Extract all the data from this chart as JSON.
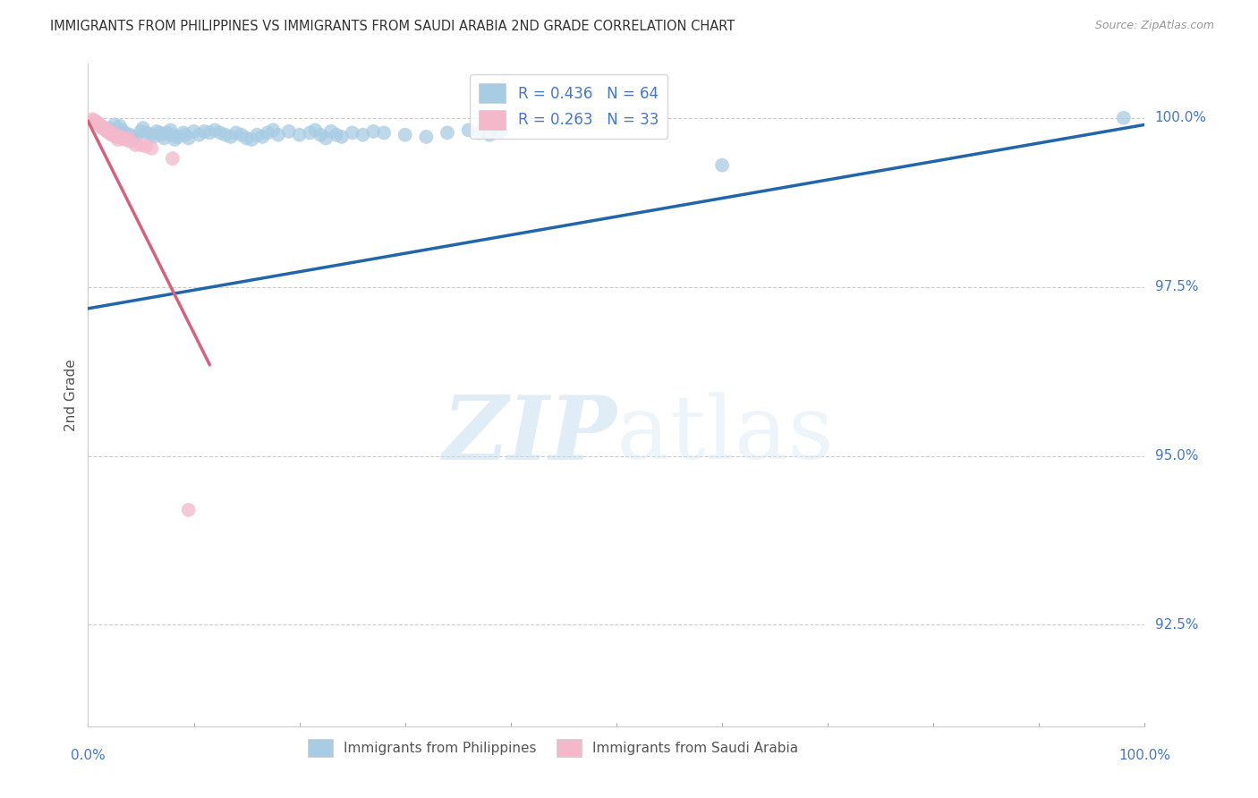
{
  "title": "IMMIGRANTS FROM PHILIPPINES VS IMMIGRANTS FROM SAUDI ARABIA 2ND GRADE CORRELATION CHART",
  "source": "Source: ZipAtlas.com",
  "ylabel": "2nd Grade",
  "ytick_labels": [
    "100.0%",
    "97.5%",
    "95.0%",
    "92.5%"
  ],
  "ytick_values": [
    1.0,
    0.975,
    0.95,
    0.925
  ],
  "xlim": [
    0.0,
    1.0
  ],
  "ylim": [
    0.91,
    1.008
  ],
  "legend_blue_label": "R = 0.436   N = 64",
  "legend_pink_label": "R = 0.263   N = 33",
  "watermark_zip": "ZIP",
  "watermark_atlas": "atlas",
  "blue_color": "#a8cce4",
  "pink_color": "#f4b8cb",
  "line_blue_color": "#2166ac",
  "line_pink_color": "#d9607a",
  "axis_color": "#4477cc",
  "blue_x": [
    0.02,
    0.025,
    0.03,
    0.032,
    0.035,
    0.04,
    0.042,
    0.045,
    0.05,
    0.052,
    0.055,
    0.06,
    0.062,
    0.065,
    0.068,
    0.07,
    0.072,
    0.075,
    0.078,
    0.08,
    0.082,
    0.085,
    0.09,
    0.092,
    0.095,
    0.1,
    0.105,
    0.11,
    0.115,
    0.12,
    0.125,
    0.13,
    0.135,
    0.14,
    0.145,
    0.15,
    0.155,
    0.16,
    0.165,
    0.17,
    0.175,
    0.18,
    0.19,
    0.2,
    0.21,
    0.215,
    0.22,
    0.225,
    0.23,
    0.235,
    0.24,
    0.25,
    0.26,
    0.27,
    0.28,
    0.3,
    0.32,
    0.34,
    0.36,
    0.37,
    0.38,
    0.39,
    0.6,
    0.98
  ],
  "blue_y": [
    0.9985,
    0.999,
    0.9988,
    0.9982,
    0.9978,
    0.9975,
    0.997,
    0.9972,
    0.998,
    0.9985,
    0.9978,
    0.9975,
    0.9972,
    0.998,
    0.9978,
    0.9975,
    0.997,
    0.9978,
    0.9982,
    0.9975,
    0.9968,
    0.9972,
    0.9978,
    0.9975,
    0.997,
    0.998,
    0.9975,
    0.998,
    0.9978,
    0.9982,
    0.9978,
    0.9975,
    0.9972,
    0.9978,
    0.9975,
    0.997,
    0.9968,
    0.9975,
    0.9972,
    0.9978,
    0.9982,
    0.9975,
    0.998,
    0.9975,
    0.9978,
    0.9982,
    0.9975,
    0.997,
    0.998,
    0.9975,
    0.9972,
    0.9978,
    0.9975,
    0.998,
    0.9978,
    0.9975,
    0.9972,
    0.9978,
    0.9982,
    0.9978,
    0.9975,
    0.998,
    0.993,
    1.0
  ],
  "pink_x": [
    0.004,
    0.006,
    0.008,
    0.009,
    0.01,
    0.011,
    0.012,
    0.013,
    0.014,
    0.015,
    0.016,
    0.017,
    0.018,
    0.019,
    0.02,
    0.021,
    0.022,
    0.023,
    0.024,
    0.025,
    0.027,
    0.028,
    0.03,
    0.032,
    0.035,
    0.038,
    0.04,
    0.045,
    0.05,
    0.055,
    0.06,
    0.08,
    0.095
  ],
  "pink_y": [
    0.9998,
    0.9996,
    0.9994,
    0.9992,
    0.9992,
    0.999,
    0.9988,
    0.9986,
    0.9985,
    0.9984,
    0.9983,
    0.9982,
    0.998,
    0.9979,
    0.998,
    0.9978,
    0.9975,
    0.9978,
    0.9975,
    0.9974,
    0.9972,
    0.9968,
    0.9972,
    0.997,
    0.9968,
    0.997,
    0.9965,
    0.996,
    0.996,
    0.9958,
    0.9955,
    0.994,
    0.942
  ],
  "blue_line_x": [
    0.0,
    1.0
  ],
  "blue_line_y": [
    0.9718,
    0.999
  ],
  "pink_line_x": [
    0.0,
    0.115
  ],
  "pink_line_y": [
    0.9995,
    0.9635
  ]
}
